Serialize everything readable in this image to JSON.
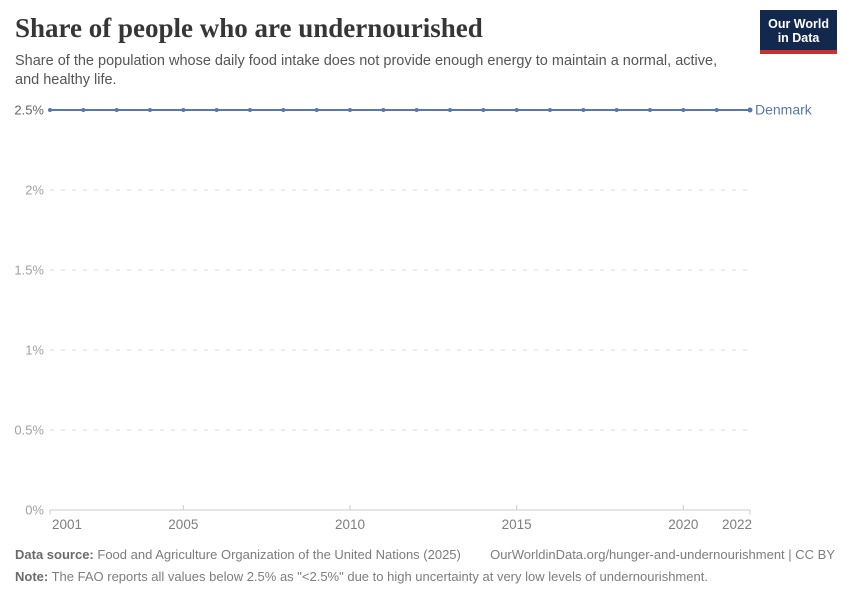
{
  "header": {
    "title": "Share of people who are undernourished",
    "subtitle_line1": "Share of the population whose daily food intake does not provide enough energy to maintain a normal, active,",
    "subtitle_line2": "and healthy life.",
    "logo": {
      "line1": "Our World",
      "line2": "in Data",
      "bg_color": "#12294d",
      "accent_color": "#c5312b"
    }
  },
  "chart_data": {
    "type": "line",
    "title": "Share of people who are undernourished",
    "xlabel": "",
    "ylabel": "",
    "xlim": [
      2001,
      2022
    ],
    "ylim": [
      0,
      2.5
    ],
    "grid": "horizontal-dashed",
    "legend": "end-of-line-label",
    "yticks": [
      {
        "value": 0,
        "label": "0%"
      },
      {
        "value": 0.5,
        "label": "0.5%"
      },
      {
        "value": 1,
        "label": "1%"
      },
      {
        "value": 1.5,
        "label": "1.5%"
      },
      {
        "value": 2,
        "label": "2%"
      },
      {
        "value": 2.5,
        "label": "2.5%",
        "strong": true
      }
    ],
    "xticks": [
      {
        "value": 2001,
        "label": "2001",
        "align": "start",
        "edge": true
      },
      {
        "value": 2005,
        "label": "2005",
        "align": "middle"
      },
      {
        "value": 2010,
        "label": "2010",
        "align": "middle"
      },
      {
        "value": 2015,
        "label": "2015",
        "align": "middle"
      },
      {
        "value": 2020,
        "label": "2020",
        "align": "middle"
      },
      {
        "value": 2022,
        "label": "2022",
        "align": "end",
        "edge": true
      }
    ],
    "series": [
      {
        "name": "Denmark",
        "color": "#5678ab",
        "x": [
          2001,
          2002,
          2003,
          2004,
          2005,
          2006,
          2007,
          2008,
          2009,
          2010,
          2011,
          2012,
          2013,
          2014,
          2015,
          2016,
          2017,
          2018,
          2019,
          2020,
          2021,
          2022
        ],
        "values": [
          2.5,
          2.5,
          2.5,
          2.5,
          2.5,
          2.5,
          2.5,
          2.5,
          2.5,
          2.5,
          2.5,
          2.5,
          2.5,
          2.5,
          2.5,
          2.5,
          2.5,
          2.5,
          2.5,
          2.5,
          2.5,
          2.5
        ]
      }
    ]
  },
  "footer": {
    "datasource_label": "Data source:",
    "datasource_text": "Food and Agriculture Organization of the United Nations (2025)",
    "url_text": "OurWorldinData.org/hunger-and-undernourishment | CC BY",
    "note_label": "Note:",
    "note_text": "The FAO reports all values below 2.5% as \"<2.5%\" due to high uncertainty at very low levels of undernourishment."
  }
}
